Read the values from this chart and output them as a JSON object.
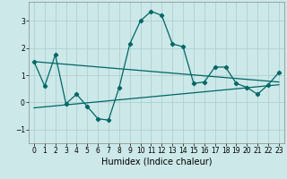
{
  "title": "",
  "xlabel": "Humidex (Indice chaleur)",
  "xlim": [
    -0.5,
    23.5
  ],
  "ylim": [
    -1.5,
    3.7
  ],
  "yticks": [
    -1,
    0,
    1,
    2,
    3
  ],
  "xticks": [
    0,
    1,
    2,
    3,
    4,
    5,
    6,
    7,
    8,
    9,
    10,
    11,
    12,
    13,
    14,
    15,
    16,
    17,
    18,
    19,
    20,
    21,
    22,
    23
  ],
  "background_color": "#cce8e8",
  "grid_color": "#aacccc",
  "line_color": "#006666",
  "line1_x": [
    0,
    1,
    2,
    3,
    4,
    5,
    6,
    7,
    8,
    9,
    10,
    11,
    12,
    13,
    14,
    15,
    16,
    17,
    18,
    19,
    20,
    21,
    22,
    23
  ],
  "line1_y": [
    1.5,
    0.6,
    1.75,
    -0.05,
    0.3,
    -0.15,
    -0.6,
    -0.65,
    0.55,
    2.15,
    3.0,
    3.35,
    3.2,
    2.15,
    2.05,
    0.7,
    0.75,
    1.3,
    1.3,
    0.7,
    0.55,
    0.3,
    0.65,
    1.1
  ],
  "trend1_x": [
    0,
    23
  ],
  "trend1_y": [
    1.5,
    0.75
  ],
  "trend2_x": [
    0,
    23
  ],
  "trend2_y": [
    -0.2,
    0.65
  ],
  "xlabel_fontsize": 7,
  "tick_fontsize": 5.5
}
